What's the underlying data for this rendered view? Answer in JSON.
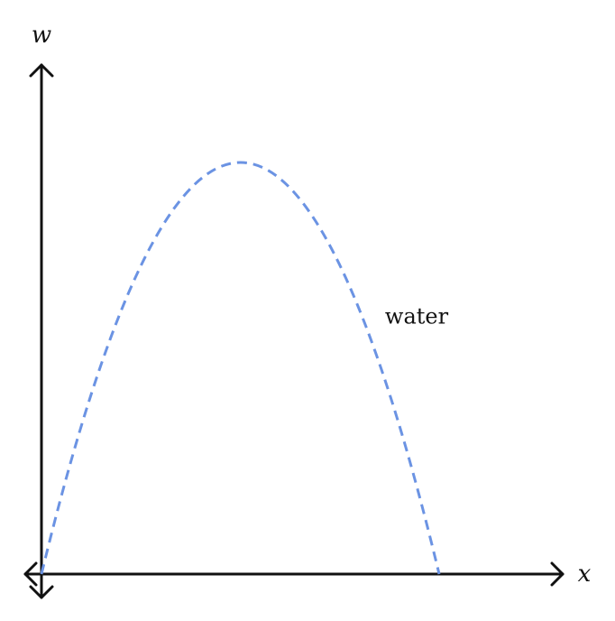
{
  "axes": {
    "vertical_label": "w",
    "horizontal_label": "x"
  },
  "curve": {
    "label": "water"
  }
}
